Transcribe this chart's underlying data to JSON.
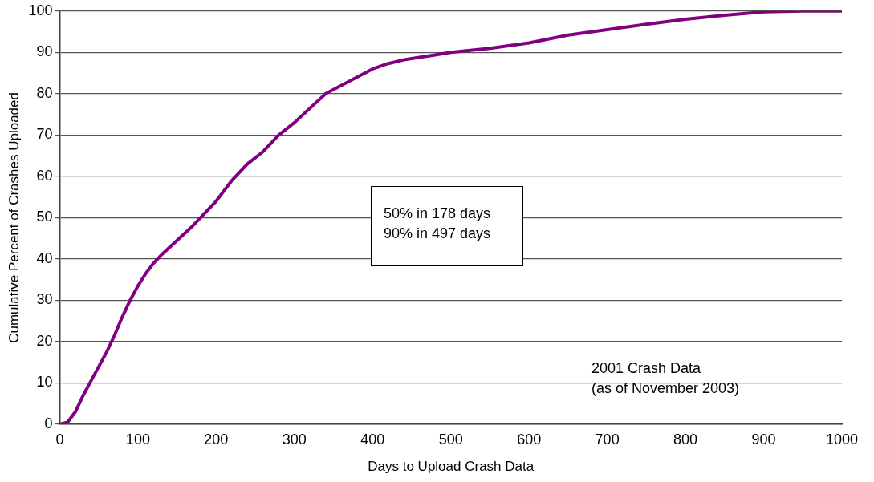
{
  "chart_data": {
    "type": "line",
    "xlabel": "Days to Upload Crash Data",
    "ylabel": "Cumulative Percent of Crashes Uploaded",
    "x": [
      0,
      10,
      20,
      30,
      40,
      50,
      60,
      70,
      80,
      90,
      100,
      110,
      120,
      130,
      150,
      170,
      180,
      200,
      220,
      240,
      260,
      280,
      300,
      320,
      340,
      360,
      380,
      400,
      420,
      440,
      460,
      480,
      500,
      550,
      600,
      650,
      700,
      750,
      800,
      850,
      900,
      950,
      1000
    ],
    "series": [
      {
        "color": "#800080",
        "values": [
          0,
          0.5,
          3,
          7,
          10.5,
          14,
          17.5,
          21.5,
          26,
          30,
          33.5,
          36.5,
          39,
          41,
          44.5,
          48,
          50,
          54,
          59,
          63,
          66,
          70,
          73,
          76.5,
          80,
          82,
          84,
          86,
          87.3,
          88.2,
          88.8,
          89.4,
          90,
          91,
          92.3,
          94.2,
          95.5,
          96.8,
          98,
          99,
          99.8,
          100,
          100
        ]
      }
    ],
    "xlim": [
      0,
      1000
    ],
    "xticks": [
      0,
      100,
      200,
      300,
      400,
      500,
      600,
      700,
      800,
      900,
      1000
    ],
    "ylim": [
      0,
      100
    ],
    "yticks": [
      0,
      10,
      20,
      30,
      40,
      50,
      60,
      70,
      80,
      90,
      100
    ],
    "grid": "y",
    "legend": false,
    "marker": "none",
    "line_style": "solid",
    "annotations": [
      "50% in 178 days\n90% in 497 days",
      "2001 Crash Data\n(as of November 2003)"
    ]
  }
}
